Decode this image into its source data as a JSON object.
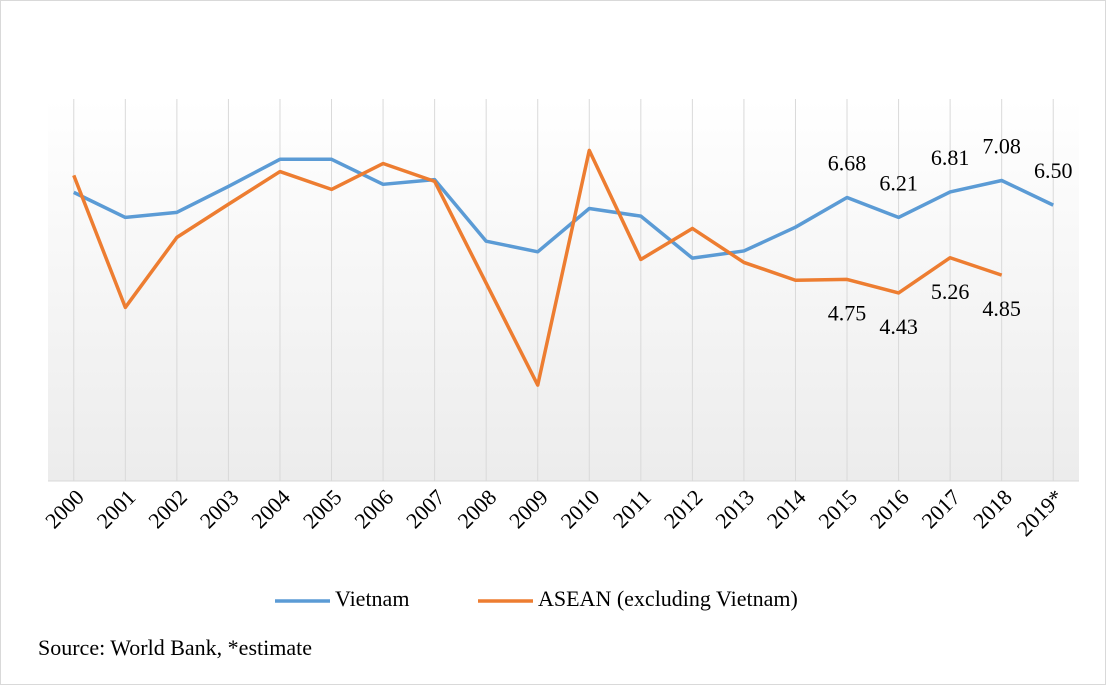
{
  "chart_data": {
    "type": "line",
    "categories": [
      "2000",
      "2001",
      "2002",
      "2003",
      "2004",
      "2005",
      "2006",
      "2007",
      "2008",
      "2009",
      "2010",
      "2011",
      "2012",
      "2013",
      "2014",
      "2015",
      "2016",
      "2017",
      "2018",
      "2019*"
    ],
    "series": [
      {
        "name": "Vietnam",
        "color": "#5b9bd5",
        "values": [
          6.8,
          6.21,
          6.33,
          6.94,
          7.58,
          7.58,
          6.99,
          7.1,
          5.65,
          5.4,
          6.42,
          6.24,
          5.25,
          5.42,
          5.98,
          6.68,
          6.21,
          6.81,
          7.08,
          6.5
        ],
        "value_labels": [
          null,
          null,
          null,
          null,
          null,
          null,
          null,
          null,
          null,
          null,
          null,
          null,
          null,
          null,
          null,
          "6.68",
          "6.21",
          "6.81",
          "7.08",
          "6.50"
        ]
      },
      {
        "name": "ASEAN (excluding Vietnam)",
        "color": "#ed7d31",
        "values": [
          7.2,
          4.09,
          5.74,
          6.52,
          7.29,
          6.87,
          7.48,
          7.06,
          4.66,
          2.26,
          7.79,
          5.22,
          5.95,
          5.15,
          4.73,
          4.75,
          4.43,
          5.26,
          4.85,
          null
        ],
        "value_labels": [
          null,
          null,
          null,
          null,
          null,
          null,
          null,
          null,
          null,
          null,
          null,
          null,
          null,
          null,
          null,
          "4.75",
          "4.43",
          "5.26",
          "4.85",
          null
        ]
      }
    ],
    "ylim": [
      0,
      9
    ],
    "grid": true,
    "legend": "bottom",
    "source": "Source: World Bank, *estimate"
  }
}
